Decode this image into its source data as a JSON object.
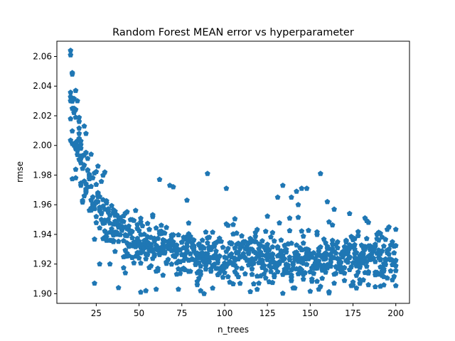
{
  "chart_data": {
    "type": "scatter",
    "title": "Random Forest MEAN error vs hyperparameter",
    "xlabel": "n_trees",
    "ylabel": "rmse",
    "xlim": [
      2,
      208
    ],
    "ylim": [
      1.8935,
      2.0703
    ],
    "xticks": [
      25,
      50,
      75,
      100,
      125,
      150,
      175,
      200
    ],
    "yticks": [
      1.9,
      1.92,
      1.94,
      1.96,
      1.98,
      2.0,
      2.02,
      2.04,
      2.06
    ],
    "marker": "pentagon",
    "grid": false,
    "colors": {
      "marker": "#1f77b4"
    },
    "series": [
      {
        "x_range": [
          10,
          200
        ],
        "cloud_params": {
          "a": 0.168,
          "k": 0.122,
          "floor": 1.895,
          "scatter_sd": 0.024,
          "spread_decay": 5.0
        },
        "noted_points": [
          [
            10,
            2.064
          ],
          [
            10,
            2.061
          ],
          [
            11,
            2.049
          ],
          [
            11,
            2.048
          ],
          [
            12,
            2.025
          ],
          [
            13,
            2.037
          ],
          [
            14,
            2.03
          ],
          [
            16,
            2.003
          ],
          [
            16,
            1.998
          ],
          [
            18,
            2.013
          ],
          [
            19,
            2.008
          ],
          [
            22,
            1.994
          ],
          [
            26,
            1.986
          ],
          [
            24,
            1.907
          ],
          [
            27,
            1.92
          ],
          [
            33,
            1.92
          ],
          [
            38,
            1.904
          ],
          [
            42,
            1.914
          ],
          [
            51,
            1.901
          ],
          [
            54,
            1.902
          ],
          [
            60,
            1.903
          ],
          [
            62,
            1.977
          ],
          [
            68,
            1.973
          ],
          [
            70,
            1.972
          ],
          [
            73,
            1.903
          ],
          [
            78,
            1.963
          ],
          [
            86,
            1.902
          ],
          [
            88,
            1.9
          ],
          [
            90,
            1.981
          ],
          [
            101,
            1.971
          ],
          [
            131,
            1.965
          ],
          [
            134,
            1.973
          ],
          [
            139,
            1.965
          ],
          [
            142,
            1.969
          ],
          [
            143,
            1.96
          ],
          [
            145,
            1.971
          ],
          [
            148,
            1.971
          ],
          [
            156,
            1.981
          ],
          [
            160,
            1.962
          ],
          [
            173,
            1.954
          ],
          [
            182,
            1.951
          ],
          [
            155,
            1.903
          ],
          [
            191,
            1.905
          ]
        ]
      }
    ]
  }
}
